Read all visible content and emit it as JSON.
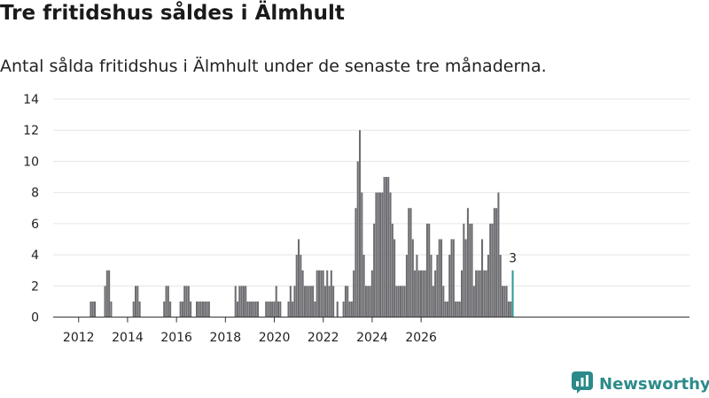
{
  "title": "Tre fritidshus såldes i Älmhult",
  "subtitle": "Antal sålda fritidshus i Älmhult under de senaste tre månaderna.",
  "brand": {
    "name": "Newsworthy",
    "icon": "newsworthy-logo-icon",
    "color": "#2c8b8a"
  },
  "colors": {
    "bar": "#6d6c70",
    "highlight": "#2e9a95",
    "grid": "#e6e6e6",
    "text": "#222222"
  },
  "chart_data": {
    "type": "bar",
    "title": "Tre fritidshus såldes i Älmhult",
    "subtitle": "Antal sålda fritidshus i Älmhult under de senaste tre månaderna.",
    "xlabel": "",
    "ylabel": "",
    "ylim": [
      0,
      14
    ],
    "yticks": [
      0,
      2,
      4,
      6,
      8,
      10,
      12,
      14
    ],
    "xticks": [
      "2012",
      "2014",
      "2016",
      "2018",
      "2020",
      "2022",
      "2024",
      "2026"
    ],
    "grid": true,
    "x_start": "2011-01",
    "x_step": "1 month",
    "values": [
      0,
      0,
      0,
      0,
      0,
      0,
      0,
      0,
      0,
      0,
      0,
      0,
      0,
      0,
      0,
      0,
      0,
      0,
      1,
      1,
      1,
      0,
      0,
      0,
      0,
      2,
      3,
      3,
      1,
      0,
      0,
      0,
      0,
      0,
      0,
      0,
      0,
      0,
      0,
      1,
      2,
      2,
      1,
      0,
      0,
      0,
      0,
      0,
      0,
      0,
      0,
      0,
      0,
      0,
      1,
      2,
      2,
      1,
      0,
      0,
      0,
      0,
      1,
      1,
      2,
      2,
      2,
      1,
      0,
      0,
      1,
      1,
      1,
      1,
      1,
      1,
      1,
      0,
      0,
      0,
      0,
      0,
      0,
      0,
      0,
      0,
      0,
      0,
      0,
      2,
      1,
      2,
      2,
      2,
      2,
      1,
      1,
      1,
      1,
      1,
      1,
      0,
      0,
      0,
      1,
      1,
      1,
      1,
      1,
      2,
      1,
      1,
      0,
      0,
      0,
      1,
      2,
      1,
      2,
      4,
      5,
      4,
      3,
      2,
      2,
      2,
      2,
      2,
      1,
      3,
      3,
      3,
      3,
      2,
      3,
      2,
      3,
      2,
      0,
      1,
      0,
      0,
      1,
      2,
      2,
      1,
      1,
      3,
      7,
      10,
      12,
      8,
      4,
      2,
      2,
      2,
      3,
      6,
      8,
      8,
      8,
      8,
      9,
      9,
      9,
      8,
      6,
      5,
      2,
      2,
      2,
      2,
      2,
      4,
      7,
      7,
      5,
      3,
      4,
      3,
      3,
      3,
      3,
      6,
      6,
      4,
      2,
      3,
      4,
      5,
      5,
      2,
      1,
      1,
      4,
      5,
      5,
      1,
      1,
      1,
      3,
      6,
      5,
      7,
      6,
      6,
      2,
      3,
      3,
      3,
      5,
      3,
      3,
      4,
      6,
      6,
      7,
      7,
      8,
      4,
      2,
      2,
      2,
      1,
      1,
      3
    ],
    "highlight_last": true,
    "annotation": {
      "label": "3"
    }
  }
}
